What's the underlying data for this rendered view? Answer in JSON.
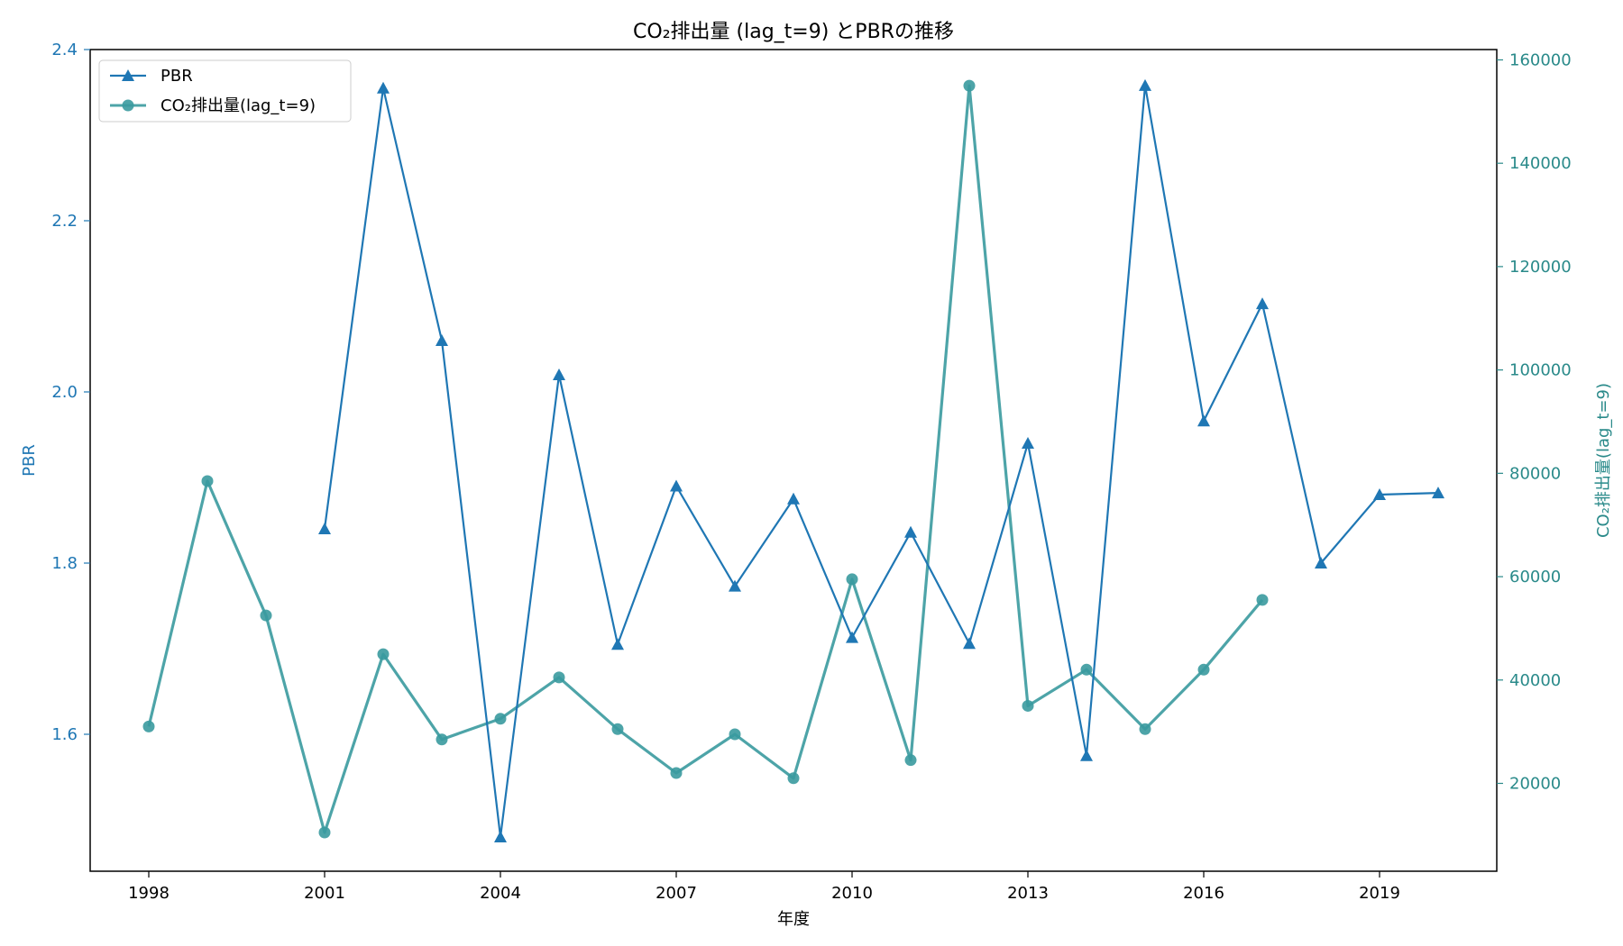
{
  "chart_data": {
    "type": "line",
    "title": "CO₂排出量 (lag_t=9) とPBRの推移",
    "xlabel": "年度",
    "ylabel_left": "PBR",
    "ylabel_right": "CO₂排出量(lag_t=9)",
    "xlim": [
      1997,
      2021
    ],
    "ylim_left": [
      1.44,
      2.4
    ],
    "ylim_right": [
      3000,
      162000
    ],
    "x_ticks": [
      1998,
      2001,
      2004,
      2007,
      2010,
      2013,
      2016,
      2019
    ],
    "y_ticks_left": [
      "1.6",
      "1.8",
      "2.0",
      "2.2",
      "2.4"
    ],
    "y_ticks_right": [
      "20000",
      "40000",
      "60000",
      "80000",
      "100000",
      "120000",
      "140000",
      "160000"
    ],
    "legend_position": "top-left",
    "grid": false,
    "series": [
      {
        "name": "PBR",
        "axis": "left",
        "marker": "triangle",
        "color": "#1f77b4",
        "x": [
          2001,
          2002,
          2003,
          2004,
          2005,
          2006,
          2007,
          2008,
          2009,
          2010,
          2011,
          2012,
          2013,
          2014,
          2015,
          2016,
          2017,
          2018,
          2019,
          2020
        ],
        "values": [
          1.84,
          2.355,
          2.06,
          1.48,
          2.02,
          1.705,
          1.89,
          1.773,
          1.875,
          1.713,
          1.836,
          1.706,
          1.94,
          1.575,
          2.358,
          1.966,
          2.103,
          1.8,
          1.88,
          1.882
        ]
      },
      {
        "name": "CO₂排出量(lag_t=9)",
        "axis": "right",
        "marker": "circle",
        "color": "#3a9a9f",
        "x": [
          1998,
          1999,
          2000,
          2001,
          2002,
          2003,
          2004,
          2005,
          2006,
          2007,
          2008,
          2009,
          2010,
          2011,
          2012,
          2013,
          2014,
          2015,
          2016,
          2017
        ],
        "values": [
          31000,
          78500,
          52500,
          10500,
          45000,
          28500,
          32500,
          40500,
          30500,
          22000,
          29500,
          21000,
          59500,
          24500,
          155000,
          35000,
          42000,
          30500,
          42000,
          55500
        ]
      }
    ]
  },
  "colors": {
    "pbr": "#1f77b4",
    "co2": "#3a9a9f",
    "right_axis_text": "#2a8a8a"
  }
}
